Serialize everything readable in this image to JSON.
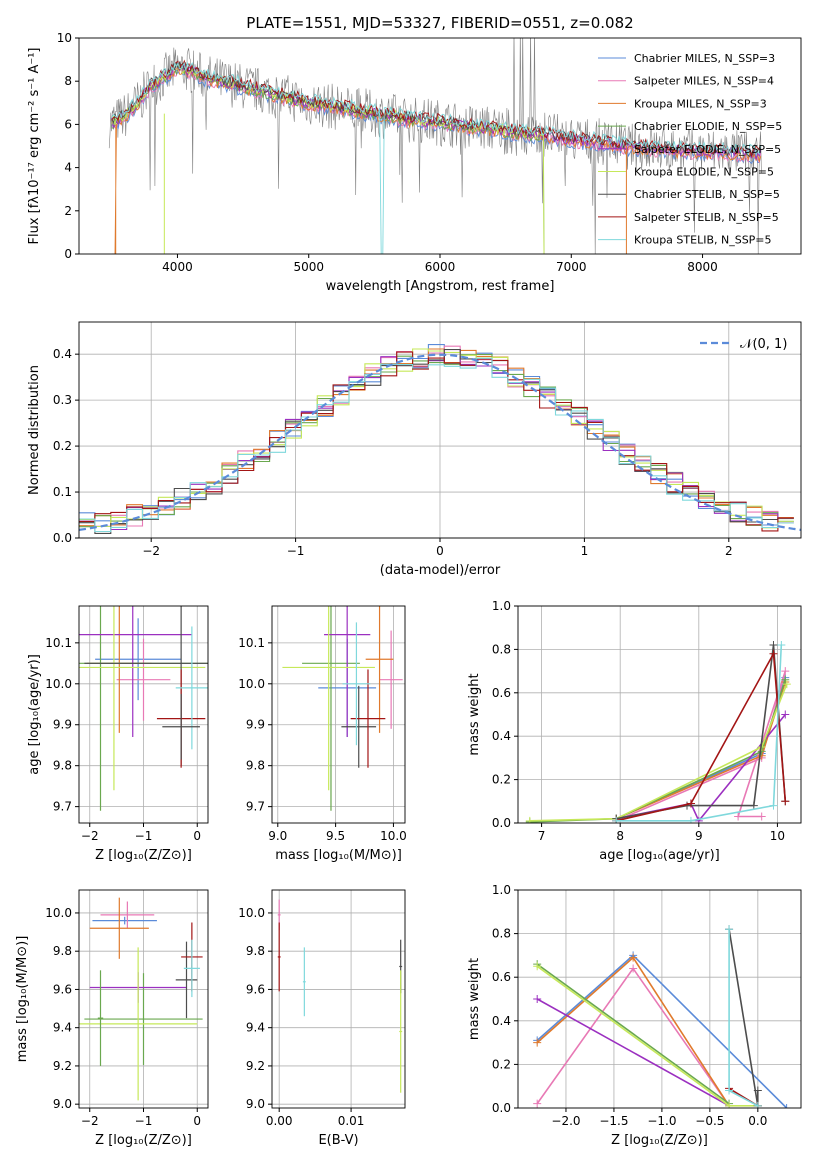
{
  "colors": {
    "chabrier_miles": "#5b8bd9",
    "salpeter_miles": "#e879b5",
    "kroupa_miles": "#e07a2d",
    "chabrier_elodie": "#6aa84f",
    "salpeter_elodie": "#9b30c0",
    "kroupa_elodie": "#c6e85a",
    "chabrier_stelib": "#4d4d4d",
    "salpeter_stelib": "#a31515",
    "kroupa_stelib": "#7fd8dc",
    "data_gray": "#808080",
    "normal_dashed": "#5b8bd9"
  },
  "chart_data": [
    {
      "id": "spectrum",
      "type": "line",
      "title": "PLATE=1551, MJD=53327, FIBERID=0551, z=0.082",
      "xlabel": "wavelength [Angstrom, rest frame]",
      "ylabel": "Flux [fλ10⁻¹⁷ erg cm⁻² s⁻¹ A⁻¹]",
      "xlim": [
        3250,
        8750
      ],
      "ylim": [
        0,
        10
      ],
      "xticks": [
        4000,
        5000,
        6000,
        7000,
        8000
      ],
      "yticks": [
        0,
        2,
        4,
        6,
        8,
        10
      ],
      "legend": [
        "Chabrier MILES, N_SSP=3",
        "Salpeter MILES, N_SSP=4",
        "Kroupa MILES, N_SSP=3",
        "Chabrier ELODIE, N_SSP=5",
        "Salpeter ELODIE, N_SSP=5",
        "Kroupa ELODIE, N_SSP=5",
        "Chabrier STELIB, N_SSP=5",
        "Salpeter STELIB, N_SSP=5",
        "Kroupa STELIB, N_SSP=5"
      ],
      "legend_keys": [
        "chabrier_miles",
        "salpeter_miles",
        "kroupa_miles",
        "chabrier_elodie",
        "salpeter_elodie",
        "kroupa_elodie",
        "chabrier_stelib",
        "salpeter_stelib",
        "kroupa_stelib"
      ],
      "legend_placement": "top-right",
      "grid": false,
      "model_continuum": [
        [
          3480,
          6.0
        ],
        [
          3600,
          6.4
        ],
        [
          3700,
          7.0
        ],
        [
          3800,
          7.8
        ],
        [
          3900,
          8.2
        ],
        [
          4000,
          8.6
        ],
        [
          4100,
          8.5
        ],
        [
          4200,
          8.2
        ],
        [
          4400,
          7.9
        ],
        [
          4600,
          7.6
        ],
        [
          4800,
          7.3
        ],
        [
          5000,
          7.0
        ],
        [
          5200,
          6.8
        ],
        [
          5400,
          6.6
        ],
        [
          5600,
          6.4
        ],
        [
          5800,
          6.2
        ],
        [
          6000,
          6.1
        ],
        [
          6200,
          5.9
        ],
        [
          6400,
          5.8
        ],
        [
          6600,
          5.6
        ],
        [
          6800,
          5.5
        ],
        [
          7000,
          5.3
        ],
        [
          7200,
          5.2
        ],
        [
          7400,
          5.0
        ],
        [
          7800,
          4.8
        ],
        [
          8200,
          4.7
        ],
        [
          8450,
          4.6
        ]
      ]
    },
    {
      "id": "residuals",
      "type": "line",
      "xlabel": "(data-model)/error",
      "ylabel": "Normed distribution",
      "xlim": [
        -2.5,
        2.5
      ],
      "ylim": [
        0,
        0.47
      ],
      "xticks": [
        -2,
        -1,
        0,
        1,
        2
      ],
      "yticks": [
        0.0,
        0.1,
        0.2,
        0.3,
        0.4
      ],
      "legend": [
        "𝒩(0, 1)"
      ],
      "legend_placement": "top-right",
      "grid": true,
      "hist_base": [
        0.035,
        0.03,
        0.04,
        0.05,
        0.06,
        0.07,
        0.085,
        0.1,
        0.12,
        0.14,
        0.165,
        0.185,
        0.21,
        0.235,
        0.26,
        0.285,
        0.31,
        0.33,
        0.355,
        0.37,
        0.385,
        0.39,
        0.4,
        0.395,
        0.39,
        0.38,
        0.37,
        0.35,
        0.33,
        0.305,
        0.285,
        0.26,
        0.235,
        0.21,
        0.185,
        0.16,
        0.14,
        0.12,
        0.1,
        0.085,
        0.07,
        0.055,
        0.045,
        0.04,
        0.035
      ]
    },
    {
      "id": "z-age",
      "type": "scatter",
      "xlabel": "Z [log₁₀(Z/Z⊙)]",
      "ylabel": "age  [log₁₀(age/yr)]",
      "xlim": [
        -2.2,
        0.2
      ],
      "ylim": [
        9.66,
        10.19
      ],
      "xticks": [
        -2,
        -1,
        0
      ],
      "yticks": [
        9.7,
        9.8,
        9.9,
        10.0,
        10.1
      ],
      "grid": true
    },
    {
      "id": "mass-age",
      "type": "scatter",
      "xlabel": "mass [log₁₀(M/M⊙)]",
      "ylabel": "",
      "xlim": [
        8.95,
        10.1
      ],
      "ylim": [
        9.66,
        10.19
      ],
      "xticks": [
        9.0,
        9.5,
        10.0
      ],
      "yticks": [
        9.7,
        9.8,
        9.9,
        10.0,
        10.1
      ],
      "grid": true
    },
    {
      "id": "age-weight",
      "type": "line",
      "xlabel": "age  [log₁₀(age/yr)]",
      "ylabel": "mass weight",
      "xlim": [
        6.7,
        10.3
      ],
      "ylim": [
        0,
        1.0
      ],
      "xticks": [
        7,
        8,
        9,
        10
      ],
      "yticks": [
        0.0,
        0.2,
        0.4,
        0.6,
        0.8,
        1.0
      ],
      "grid": true
    },
    {
      "id": "z-mass",
      "type": "scatter",
      "xlabel": "Z [log₁₀(Z/Z⊙)]",
      "ylabel": "mass [log₁₀(M/M⊙)]",
      "xlim": [
        -2.2,
        0.2
      ],
      "ylim": [
        8.98,
        10.12
      ],
      "xticks": [
        -2,
        -1,
        0
      ],
      "yticks": [
        9.0,
        9.2,
        9.4,
        9.6,
        9.8,
        10.0
      ],
      "grid": true
    },
    {
      "id": "ebv-mass",
      "type": "scatter",
      "xlabel": "E(B-V)",
      "ylabel": "",
      "xlim": [
        -0.001,
        0.0175
      ],
      "ylim": [
        8.98,
        10.12
      ],
      "xticks": [
        0.0,
        0.01
      ],
      "yticks": [
        9.0,
        9.2,
        9.4,
        9.6,
        9.8,
        10.0
      ],
      "grid": true
    },
    {
      "id": "z-weight",
      "type": "line",
      "xlabel": "Z [log₁₀(Z/Z⊙)]",
      "ylabel": "mass weight",
      "xlim": [
        -2.5,
        0.45
      ],
      "ylim": [
        0,
        1.0
      ],
      "xticks": [
        -2.0,
        -1.5,
        -1.0,
        -0.5,
        0.0
      ],
      "yticks": [
        0.0,
        0.2,
        0.4,
        0.6,
        0.8,
        1.0
      ],
      "grid": true
    }
  ]
}
